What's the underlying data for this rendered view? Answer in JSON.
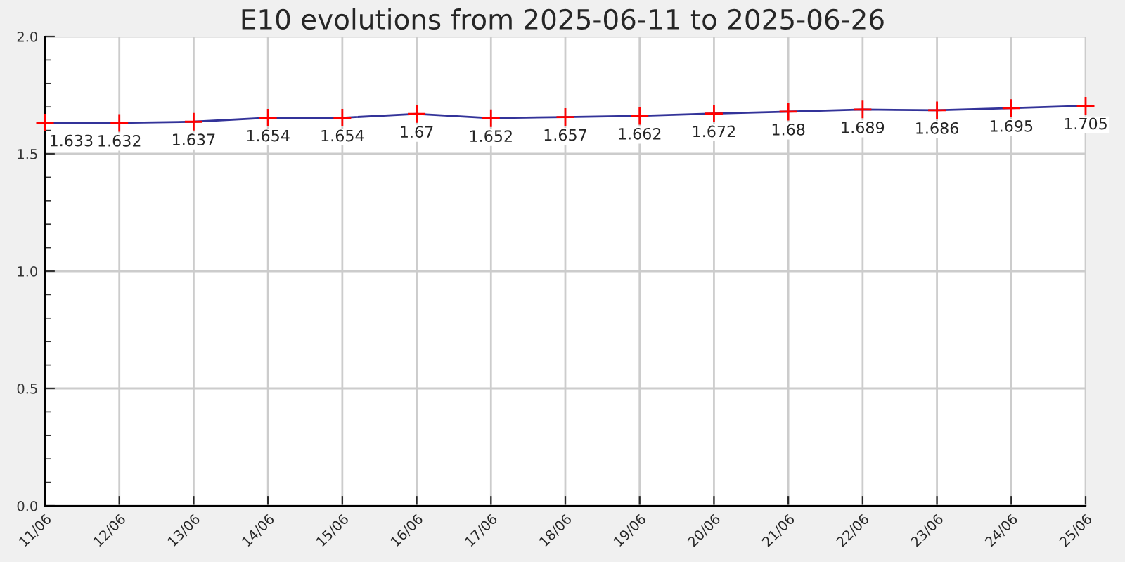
{
  "chart_data": {
    "type": "line",
    "title": "E10 evolutions from 2025-06-11 to 2025-06-26",
    "categories": [
      "11/06",
      "12/06",
      "13/06",
      "14/06",
      "15/06",
      "16/06",
      "17/06",
      "18/06",
      "19/06",
      "20/06",
      "21/06",
      "22/06",
      "23/06",
      "24/06",
      "25/06"
    ],
    "series": [
      {
        "color": "#333399",
        "colors": [
          "#ff0000",
          "#ff0000",
          "#ff0000",
          "#ff0000",
          "#ff0000",
          "#ff0000",
          "#ff0000",
          "#ff0000",
          "#ff0000",
          "#ff0000",
          "#ff0000",
          "#ff0000",
          "#ff0000",
          "#ff0000",
          "#ff0000"
        ],
        "values": [
          1.633,
          1.632,
          1.637,
          1.654,
          1.654,
          1.67,
          1.652,
          1.657,
          1.662,
          1.672,
          1.68,
          1.689,
          1.686,
          1.695,
          1.705
        ]
      }
    ],
    "ylim": [
      0,
      2.0
    ],
    "yticks": [
      {
        "value": 0,
        "label": "0.0"
      },
      0.5,
      {
        "value": 1,
        "label": "1.0"
      },
      1.5,
      {
        "value": 2,
        "label": "2.0"
      }
    ],
    "grid": true,
    "marker": "cross",
    "data_labels": true,
    "legend": false
  }
}
